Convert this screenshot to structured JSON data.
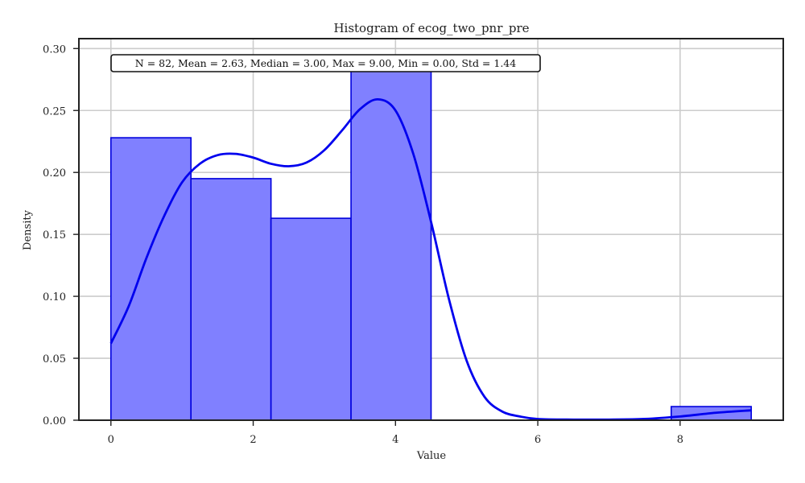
{
  "chart_data": {
    "type": "bar",
    "title": "Histogram of ecog_two_pnr_pre",
    "xlabel": "Value",
    "ylabel": "Density",
    "xlim": [
      -0.45,
      9.45
    ],
    "ylim": [
      0,
      0.308
    ],
    "xticks": [
      0,
      2,
      4,
      6,
      8
    ],
    "yticks": [
      0.0,
      0.05,
      0.1,
      0.15,
      0.2,
      0.25,
      0.3
    ],
    "xtick_labels": [
      "0",
      "2",
      "4",
      "6",
      "8"
    ],
    "ytick_labels": [
      "0.00",
      "0.05",
      "0.10",
      "0.15",
      "0.20",
      "0.25",
      "0.30"
    ],
    "grid": true,
    "stats_annotation": "N = 82, Mean = 2.63, Median = 3.00, Max = 9.00, Min = 0.00, Std = 1.44",
    "bins": [
      {
        "x0": 0.0,
        "x1": 1.125,
        "density": 0.228
      },
      {
        "x0": 1.125,
        "x1": 2.25,
        "density": 0.195
      },
      {
        "x0": 2.25,
        "x1": 3.375,
        "density": 0.163
      },
      {
        "x0": 3.375,
        "x1": 4.5,
        "density": 0.282
      },
      {
        "x0": 4.5,
        "x1": 5.625,
        "density": 0.0
      },
      {
        "x0": 5.625,
        "x1": 6.75,
        "density": 0.0
      },
      {
        "x0": 6.75,
        "x1": 7.875,
        "density": 0.0
      },
      {
        "x0": 7.875,
        "x1": 9.0,
        "density": 0.011
      }
    ],
    "kde": {
      "x": [
        0.0,
        0.25,
        0.5,
        0.75,
        1.0,
        1.25,
        1.5,
        1.75,
        2.0,
        2.25,
        2.5,
        2.75,
        3.0,
        3.25,
        3.5,
        3.75,
        4.0,
        4.25,
        4.5,
        4.75,
        5.0,
        5.25,
        5.5,
        5.75,
        6.0,
        6.5,
        7.0,
        7.5,
        8.0,
        8.5,
        9.0
      ],
      "y": [
        0.062,
        0.092,
        0.131,
        0.165,
        0.192,
        0.207,
        0.214,
        0.215,
        0.212,
        0.207,
        0.205,
        0.208,
        0.218,
        0.234,
        0.251,
        0.259,
        0.25,
        0.215,
        0.16,
        0.098,
        0.048,
        0.019,
        0.007,
        0.003,
        0.001,
        0.0005,
        0.0005,
        0.001,
        0.003,
        0.006,
        0.008
      ]
    },
    "colors": {
      "bar_fill": "#8080ff",
      "bar_edge": "#0000dd",
      "kde_line": "#0000ee"
    }
  }
}
